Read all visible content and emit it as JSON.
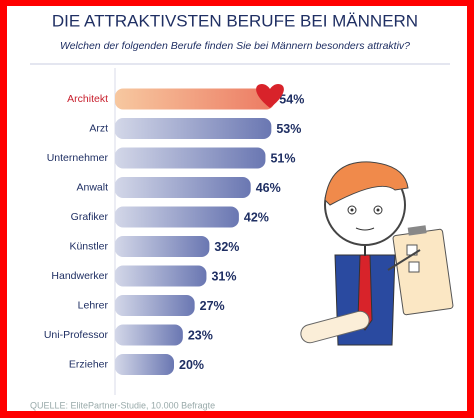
{
  "chart_data": {
    "type": "bar",
    "orientation": "horizontal",
    "title": "DIE ATTRAKTIVSTEN BERUFE BEI MÄNNERN",
    "subtitle": "Welchen der folgenden Berufe finden Sie bei Männern besonders attraktiv?",
    "source": "QUELLE: ElitePartner-Studie, 10.000 Befragte",
    "categories": [
      "Architekt",
      "Arzt",
      "Unternehmer",
      "Anwalt",
      "Grafiker",
      "Künstler",
      "Handwerker",
      "Lehrer",
      "Uni-Professor",
      "Erzieher"
    ],
    "values": [
      54,
      53,
      51,
      46,
      42,
      32,
      31,
      27,
      23,
      20
    ],
    "value_labels": [
      "54%",
      "53%",
      "51%",
      "46%",
      "42%",
      "32%",
      "31%",
      "27%",
      "23%",
      "20%"
    ],
    "colors": [
      "#ec7a62",
      "#6a77b2",
      "#6a77b2",
      "#6a77b2",
      "#6a77b2",
      "#6a77b2",
      "#6a77b2",
      "#6a77b2",
      "#6a77b2",
      "#6a77b2"
    ],
    "label_colors": [
      "#c8202e",
      "#1f2f63",
      "#1f2f63",
      "#1f2f63",
      "#1f2f63",
      "#1f2f63",
      "#1f2f63",
      "#1f2f63",
      "#1f2f63",
      "#1f2f63"
    ]
  }
}
